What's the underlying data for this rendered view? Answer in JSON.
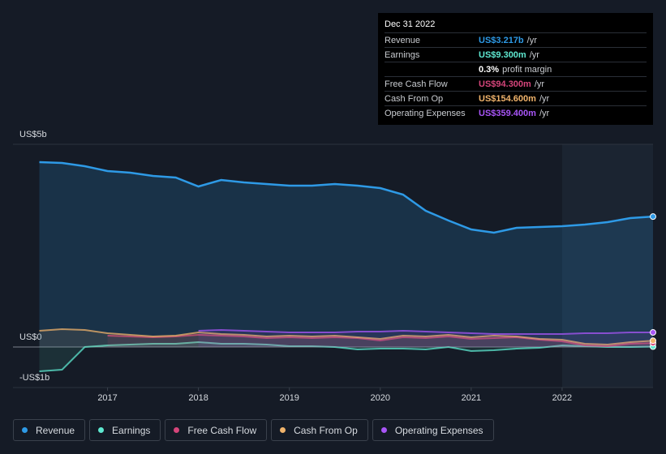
{
  "chart_data": {
    "type": "line",
    "x": [
      2016.25,
      2016.5,
      2016.75,
      2017.0,
      2017.25,
      2017.5,
      2017.75,
      2018.0,
      2018.25,
      2018.5,
      2018.75,
      2019.0,
      2019.25,
      2019.5,
      2019.75,
      2020.0,
      2020.25,
      2020.5,
      2020.75,
      2021.0,
      2021.25,
      2021.5,
      2021.75,
      2022.0,
      2022.25,
      2022.5,
      2022.75,
      2023.0
    ],
    "xlim": [
      2015.96,
      2023.0
    ],
    "xticks": [
      2017,
      2018,
      2019,
      2020,
      2021,
      2022
    ],
    "ylim": [
      -1,
      5
    ],
    "yticks": [
      {
        "value": -1,
        "label": "-US$1b"
      },
      {
        "value": 0,
        "label": "US$0"
      },
      {
        "value": 5,
        "label": "US$5b"
      }
    ],
    "grid": true,
    "legend": "bottom",
    "series": [
      {
        "name": "Revenue",
        "color": "#2e9ae6",
        "values": [
          4.56,
          4.54,
          4.46,
          4.34,
          4.3,
          4.22,
          4.18,
          3.96,
          4.12,
          4.06,
          4.02,
          3.98,
          3.98,
          4.02,
          3.98,
          3.92,
          3.76,
          3.36,
          3.12,
          2.9,
          2.82,
          2.94,
          2.96,
          2.98,
          3.02,
          3.08,
          3.18,
          3.217
        ]
      },
      {
        "name": "Earnings",
        "color": "#5ee8d0",
        "values": [
          -0.6,
          -0.56,
          0.0,
          0.04,
          0.06,
          0.08,
          0.08,
          0.12,
          0.08,
          0.08,
          0.06,
          0.02,
          0.02,
          0.0,
          -0.06,
          -0.04,
          -0.04,
          -0.06,
          0.0,
          -0.1,
          -0.08,
          -0.04,
          -0.02,
          0.04,
          0.02,
          0.0,
          0.0,
          0.0093
        ]
      },
      {
        "name": "Free Cash Flow",
        "color": "#d5457a",
        "values": [
          null,
          null,
          null,
          0.28,
          0.26,
          0.24,
          0.26,
          0.3,
          0.28,
          0.26,
          0.22,
          0.24,
          0.22,
          0.24,
          0.22,
          0.16,
          0.24,
          0.22,
          0.26,
          0.2,
          0.22,
          0.24,
          0.18,
          0.14,
          0.04,
          0.02,
          0.08,
          0.0943
        ]
      },
      {
        "name": "Cash From Op",
        "color": "#f0b36b",
        "values": [
          0.4,
          0.44,
          0.42,
          0.34,
          0.3,
          0.26,
          0.28,
          0.36,
          0.32,
          0.3,
          0.26,
          0.28,
          0.26,
          0.28,
          0.24,
          0.2,
          0.28,
          0.26,
          0.3,
          0.24,
          0.28,
          0.26,
          0.2,
          0.18,
          0.08,
          0.06,
          0.12,
          0.1546
        ]
      },
      {
        "name": "Operating Expenses",
        "color": "#a855f7",
        "values": [
          null,
          null,
          null,
          null,
          null,
          null,
          null,
          0.4,
          0.42,
          0.4,
          0.38,
          0.36,
          0.36,
          0.36,
          0.38,
          0.38,
          0.4,
          0.38,
          0.36,
          0.34,
          0.32,
          0.32,
          0.32,
          0.32,
          0.34,
          0.34,
          0.36,
          0.3594
        ]
      }
    ]
  },
  "tooltip": {
    "date": "Dec 31 2022",
    "rows": [
      {
        "label": "Revenue",
        "value": "US$3.217b",
        "unit": "/yr"
      },
      {
        "label": "Earnings",
        "value": "US$9.300m",
        "unit": "/yr"
      },
      {
        "label": "",
        "value": "0.3%",
        "unit": "profit margin"
      },
      {
        "label": "Free Cash Flow",
        "value": "US$94.300m",
        "unit": "/yr"
      },
      {
        "label": "Cash From Op",
        "value": "US$154.600m",
        "unit": "/yr"
      },
      {
        "label": "Operating Expenses",
        "value": "US$359.400m",
        "unit": "/yr"
      }
    ]
  }
}
